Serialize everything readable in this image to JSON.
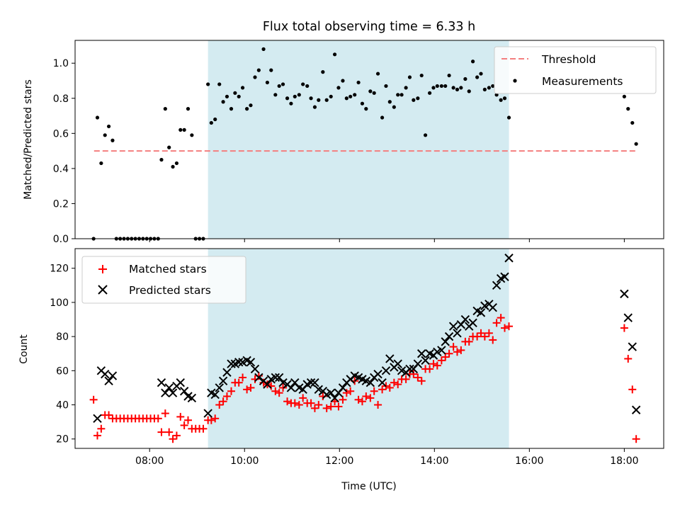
{
  "figure_title": "Flux total observing time = 6.33 h",
  "x_tick_labels": [
    "08:00",
    "10:00",
    "12:00",
    "14:00",
    "16:00",
    "18:00"
  ],
  "chart_data": [
    {
      "type": "scatter",
      "title": "Flux total observing time = 6.33 h",
      "xlabel": "",
      "ylabel": "Matched/Predicted stars",
      "xlim": [
        6.43,
        18.83
      ],
      "ylim": [
        0.0,
        1.13
      ],
      "y_ticks": [
        "0.0",
        "0.2",
        "0.4",
        "0.6",
        "0.8",
        "1.0"
      ],
      "legend": {
        "placement": "top-right",
        "entries": [
          "Threshold",
          "Measurements"
        ]
      },
      "shaded_region": {
        "x0": 9.23,
        "x1": 15.57,
        "color": "#d4ebf1"
      },
      "threshold": {
        "name": "Threshold",
        "y": 0.5,
        "x": [
          6.83,
          18.25
        ],
        "color": "#f47f7f",
        "style": "dashed"
      },
      "series": [
        {
          "name": "Measurements",
          "color": "#000000",
          "x": [
            6.82,
            6.9,
            6.98,
            7.06,
            7.14,
            7.22,
            7.3,
            7.38,
            7.46,
            7.54,
            7.62,
            7.7,
            7.78,
            7.86,
            7.94,
            8.02,
            8.1,
            8.18,
            8.25,
            8.33,
            8.41,
            8.49,
            8.57,
            8.65,
            8.73,
            8.81,
            8.89,
            8.97,
            9.05,
            9.13,
            9.23,
            9.3,
            9.38,
            9.47,
            9.55,
            9.63,
            9.72,
            9.8,
            9.88,
            9.96,
            10.05,
            10.13,
            10.22,
            10.3,
            10.4,
            10.48,
            10.56,
            10.65,
            10.73,
            10.81,
            10.9,
            10.98,
            11.06,
            11.15,
            11.23,
            11.32,
            11.4,
            11.48,
            11.56,
            11.65,
            11.73,
            11.82,
            11.9,
            11.98,
            12.07,
            12.15,
            12.23,
            12.32,
            12.4,
            12.48,
            12.56,
            12.65,
            12.73,
            12.81,
            12.9,
            12.98,
            13.06,
            13.15,
            13.23,
            13.31,
            13.4,
            13.48,
            13.56,
            13.65,
            13.73,
            13.81,
            13.9,
            13.98,
            14.06,
            14.15,
            14.23,
            14.31,
            14.4,
            14.48,
            14.56,
            14.65,
            14.73,
            14.81,
            14.9,
            14.98,
            15.06,
            15.15,
            15.23,
            15.31,
            15.4,
            15.48,
            15.57,
            18.0,
            18.08,
            18.17,
            18.25
          ],
          "values": [
            0.0,
            0.69,
            0.43,
            0.59,
            0.64,
            0.56,
            0.0,
            0.0,
            0.0,
            0.0,
            0.0,
            0.0,
            0.0,
            0.0,
            0.0,
            0.0,
            0.0,
            0.0,
            0.45,
            0.74,
            0.52,
            0.41,
            0.43,
            0.62,
            0.62,
            0.74,
            0.59,
            0.0,
            0.0,
            0.0,
            0.88,
            0.66,
            0.68,
            0.88,
            0.78,
            0.81,
            0.74,
            0.83,
            0.81,
            0.86,
            0.74,
            0.76,
            0.92,
            0.96,
            1.08,
            0.89,
            0.96,
            0.82,
            0.87,
            0.88,
            0.8,
            0.77,
            0.81,
            0.82,
            0.88,
            0.87,
            0.8,
            0.75,
            0.79,
            0.95,
            0.79,
            0.81,
            1.05,
            0.86,
            0.9,
            0.8,
            0.81,
            0.82,
            0.89,
            0.77,
            0.74,
            0.84,
            0.83,
            0.94,
            0.69,
            0.87,
            0.78,
            0.75,
            0.82,
            0.82,
            0.86,
            0.92,
            0.79,
            0.8,
            0.93,
            0.59,
            0.83,
            0.86,
            0.87,
            0.87,
            0.87,
            0.93,
            0.86,
            0.85,
            0.86,
            0.91,
            0.84,
            1.01,
            0.92,
            0.94,
            0.85,
            0.86,
            0.87,
            0.82,
            0.79,
            0.8,
            0.69,
            0.81,
            0.74,
            0.66,
            0.54
          ]
        }
      ]
    },
    {
      "type": "scatter",
      "title": "",
      "xlabel": "Time (UTC)",
      "ylabel": "Count",
      "xlim": [
        6.43,
        18.83
      ],
      "ylim": [
        14.5,
        131.5
      ],
      "y_ticks": [
        "20",
        "40",
        "60",
        "80",
        "100",
        "120"
      ],
      "legend": {
        "placement": "top-left",
        "entries": [
          "Matched stars",
          "Predicted stars"
        ]
      },
      "shaded_region": {
        "x0": 9.23,
        "x1": 15.57,
        "color": "#d4ebf1"
      },
      "series": [
        {
          "name": "Matched stars",
          "color": "#ff0000",
          "marker": "plus",
          "x": [
            6.82,
            6.9,
            6.98,
            7.06,
            7.14,
            7.22,
            7.3,
            7.38,
            7.46,
            7.54,
            7.62,
            7.7,
            7.78,
            7.86,
            7.94,
            8.02,
            8.1,
            8.18,
            8.25,
            8.33,
            8.41,
            8.49,
            8.57,
            8.65,
            8.73,
            8.81,
            8.89,
            8.97,
            9.05,
            9.13,
            9.23,
            9.3,
            9.38,
            9.47,
            9.55,
            9.63,
            9.72,
            9.8,
            9.88,
            9.96,
            10.05,
            10.13,
            10.22,
            10.3,
            10.4,
            10.48,
            10.56,
            10.65,
            10.73,
            10.81,
            10.9,
            10.98,
            11.06,
            11.15,
            11.23,
            11.32,
            11.4,
            11.48,
            11.56,
            11.65,
            11.73,
            11.82,
            11.9,
            11.98,
            12.07,
            12.15,
            12.23,
            12.32,
            12.4,
            12.48,
            12.56,
            12.65,
            12.73,
            12.81,
            12.9,
            12.98,
            13.06,
            13.15,
            13.23,
            13.31,
            13.4,
            13.48,
            13.56,
            13.65,
            13.73,
            13.81,
            13.9,
            13.98,
            14.06,
            14.15,
            14.23,
            14.31,
            14.4,
            14.48,
            14.56,
            14.65,
            14.73,
            14.81,
            14.9,
            14.98,
            15.06,
            15.15,
            15.23,
            15.31,
            15.4,
            15.48,
            15.57,
            18.0,
            18.08,
            18.17,
            18.25
          ],
          "values": [
            43,
            22,
            26,
            34,
            34,
            32,
            32,
            32,
            32,
            32,
            32,
            32,
            32,
            32,
            32,
            32,
            32,
            32,
            24,
            35,
            24,
            20,
            22,
            33,
            28,
            31,
            26,
            26,
            26,
            26,
            31,
            31,
            32,
            40,
            42,
            45,
            48,
            53,
            53,
            56,
            49,
            50,
            55,
            57,
            53,
            52,
            51,
            48,
            47,
            50,
            42,
            41,
            41,
            40,
            44,
            41,
            41,
            38,
            40,
            45,
            38,
            39,
            42,
            39,
            43,
            47,
            48,
            54,
            43,
            42,
            45,
            44,
            48,
            40,
            49,
            51,
            50,
            53,
            52,
            55,
            55,
            58,
            58,
            56,
            54,
            61,
            61,
            64,
            63,
            66,
            68,
            70,
            74,
            71,
            72,
            77,
            77,
            80,
            80,
            82,
            80,
            82,
            78,
            88,
            91,
            85,
            86,
            85,
            67,
            49,
            20
          ]
        },
        {
          "name": "Predicted stars",
          "color": "#000000",
          "marker": "x",
          "x": [
            6.9,
            6.98,
            7.06,
            7.14,
            7.22,
            8.25,
            8.33,
            8.41,
            8.49,
            8.57,
            8.65,
            8.73,
            8.81,
            8.89,
            9.23,
            9.3,
            9.38,
            9.47,
            9.55,
            9.63,
            9.72,
            9.8,
            9.88,
            9.96,
            10.05,
            10.13,
            10.22,
            10.3,
            10.4,
            10.48,
            10.56,
            10.65,
            10.73,
            10.81,
            10.9,
            10.98,
            11.06,
            11.15,
            11.23,
            11.32,
            11.4,
            11.48,
            11.56,
            11.65,
            11.73,
            11.82,
            11.9,
            11.98,
            12.07,
            12.15,
            12.23,
            12.32,
            12.4,
            12.48,
            12.56,
            12.65,
            12.73,
            12.81,
            12.9,
            12.98,
            13.06,
            13.15,
            13.23,
            13.31,
            13.4,
            13.48,
            13.56,
            13.65,
            13.73,
            13.81,
            13.9,
            13.98,
            14.06,
            14.15,
            14.23,
            14.31,
            14.4,
            14.48,
            14.56,
            14.65,
            14.73,
            14.81,
            14.9,
            14.98,
            15.06,
            15.15,
            15.23,
            15.31,
            15.4,
            15.48,
            15.57,
            18.0,
            18.08,
            18.17,
            18.25
          ],
          "values": [
            32,
            60,
            58,
            54,
            57,
            53,
            47,
            50,
            47,
            51,
            53,
            48,
            45,
            44,
            35,
            47,
            46,
            50,
            54,
            59,
            64,
            64,
            65,
            65,
            66,
            65,
            61,
            56,
            54,
            52,
            55,
            56,
            56,
            53,
            52,
            50,
            53,
            50,
            49,
            52,
            53,
            53,
            49,
            48,
            46,
            47,
            44,
            47,
            50,
            53,
            55,
            57,
            56,
            55,
            54,
            53,
            56,
            58,
            53,
            60,
            67,
            62,
            64,
            60,
            59,
            61,
            61,
            64,
            70,
            66,
            70,
            69,
            71,
            72,
            77,
            80,
            86,
            82,
            87,
            90,
            86,
            88,
            95,
            94,
            98,
            99,
            97,
            110,
            114,
            115,
            126,
            105,
            91,
            74,
            37
          ]
        }
      ]
    }
  ]
}
